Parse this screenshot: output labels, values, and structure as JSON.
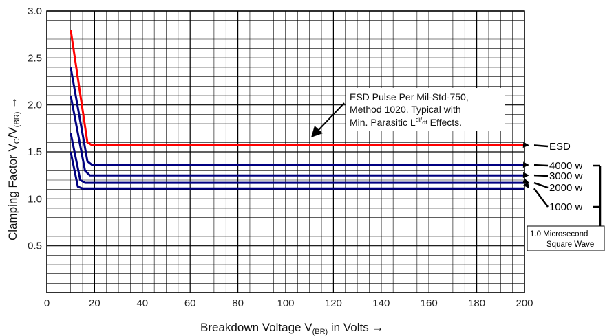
{
  "chart_data": {
    "type": "line",
    "xlabel": "Breakdown Voltage V(BR) in Volts →",
    "xlabel_parts": {
      "main": "Breakdown Voltage V",
      "sub": "(BR)",
      "tail": " in Volts →"
    },
    "ylabel": "Clamping Factor VC/V(BR) →",
    "ylabel_parts": {
      "main": "Clamping Factor V",
      "sub1": "C",
      "mid": "/V",
      "sub2": "(BR)",
      "tail": " →"
    },
    "xlim": [
      0,
      200
    ],
    "ylim": [
      0,
      3.0
    ],
    "x_ticks": [
      "0",
      "20",
      "40",
      "60",
      "80",
      "100",
      "120",
      "140",
      "160",
      "180",
      "200"
    ],
    "y_ticks": [
      "0.5",
      "1.0",
      "1.5",
      "2.0",
      "2.5",
      "3.0"
    ],
    "grid": true,
    "series": [
      {
        "name": "ESD",
        "color": "#ff0000",
        "x": [
          10,
          17,
          19,
          200
        ],
        "y": [
          2.8,
          1.6,
          1.57,
          1.57
        ]
      },
      {
        "name": "4000 w",
        "color": "#000080",
        "x": [
          10,
          17,
          19,
          200
        ],
        "y": [
          2.4,
          1.4,
          1.36,
          1.36
        ]
      },
      {
        "name": "3000 w",
        "color": "#000080",
        "x": [
          10,
          16,
          18,
          200
        ],
        "y": [
          2.1,
          1.3,
          1.25,
          1.25
        ]
      },
      {
        "name": "2000 w",
        "color": "#000080",
        "x": [
          10,
          14,
          16,
          200
        ],
        "y": [
          1.7,
          1.2,
          1.17,
          1.17
        ]
      },
      {
        "name": "1000 w",
        "color": "#000080",
        "x": [
          10,
          13,
          15,
          200
        ],
        "y": [
          1.5,
          1.13,
          1.11,
          1.11
        ]
      }
    ],
    "annotation": {
      "lines": [
        "ESD Pulse Per Mil-Std-750,",
        "Method 1020.  Typical with"
      ],
      "line3_main": "Min. Parasitic L",
      "line3_sup1": "di",
      "line3_sep": "/",
      "line3_sup2": "dt",
      "line3_tail": " Effects."
    },
    "box_label": [
      "1.0 Microsecond",
      "Square Wave"
    ]
  }
}
